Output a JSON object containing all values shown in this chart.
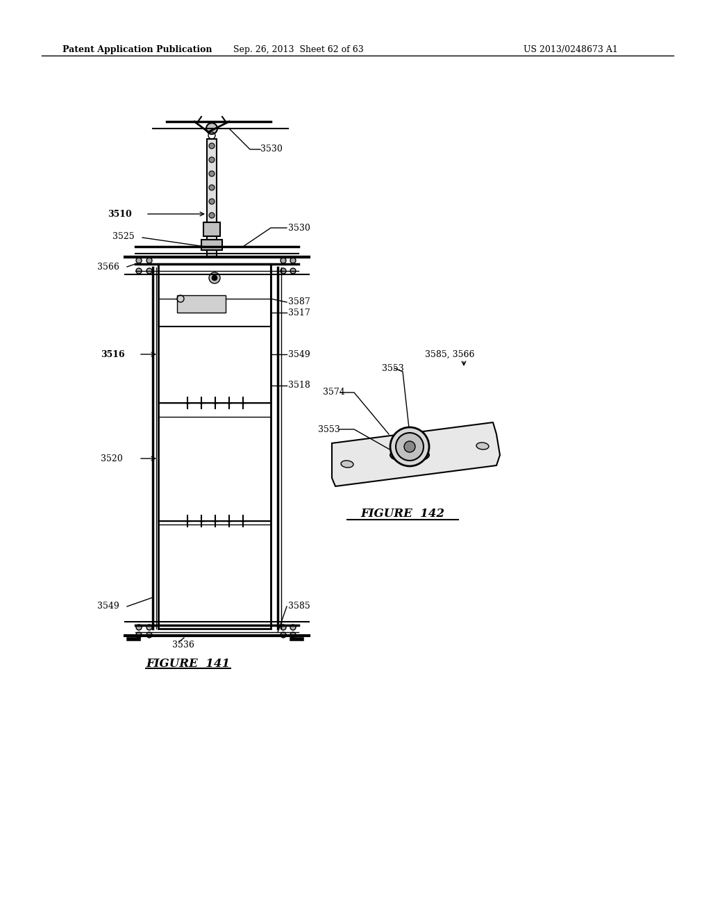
{
  "bg_color": "#ffffff",
  "header_left": "Patent Application Publication",
  "header_mid": "Sep. 26, 2013  Sheet 62 of 63",
  "header_right": "US 2013/0248673 A1",
  "fig141_label": "FIGURE  141",
  "fig142_label": "FIGURE  142",
  "line_color": "#000000"
}
